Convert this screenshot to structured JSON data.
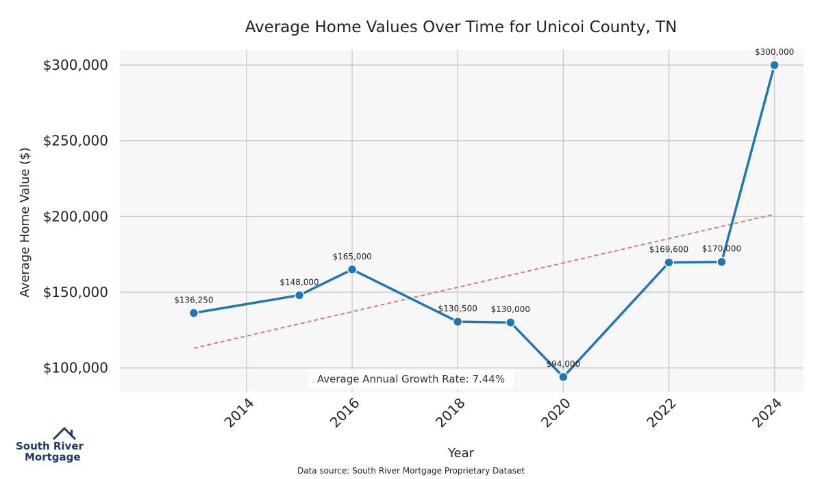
{
  "chart_data": {
    "type": "line",
    "title": "Average Home Values Over Time for Unicoi County, TN",
    "xlabel": "Year",
    "ylabel": "Average Home Value ($)",
    "x": [
      2013,
      2015,
      2016,
      2018,
      2019,
      2020,
      2022,
      2023,
      2024
    ],
    "values": [
      136250,
      148000,
      165000,
      130500,
      130000,
      94000,
      169600,
      170000,
      300000
    ],
    "value_labels": [
      "$136,250",
      "$148,000",
      "$165,000",
      "$130,500",
      "$130,000",
      "$94,000",
      "$169,600",
      "$170,000",
      "$300,000"
    ],
    "xticks": [
      2014,
      2016,
      2018,
      2020,
      2022,
      2024
    ],
    "xtick_labels": [
      "2014",
      "2016",
      "2018",
      "2020",
      "2022",
      "2024"
    ],
    "yticks": [
      100000,
      150000,
      200000,
      250000,
      300000
    ],
    "ytick_labels": [
      "$100,000",
      "$150,000",
      "$200,000",
      "$250,000",
      "$300,000"
    ],
    "xlim": [
      2011.6,
      2024.55
    ],
    "ylim": [
      84000,
      310000
    ],
    "trend": {
      "x": [
        2013,
        2024
      ],
      "values": [
        113000,
        201500
      ]
    },
    "annotation": "Average Annual Growth Rate: 7.44%",
    "colors": {
      "line": "#1f77b4",
      "trend": "#d9797c",
      "plot_bg": "#f7f7f7",
      "grid": "#cccccc"
    }
  },
  "logo": {
    "line1": "South River",
    "line2": "Mortgage"
  },
  "source": "Data source: South River Mortgage Proprietary Dataset"
}
